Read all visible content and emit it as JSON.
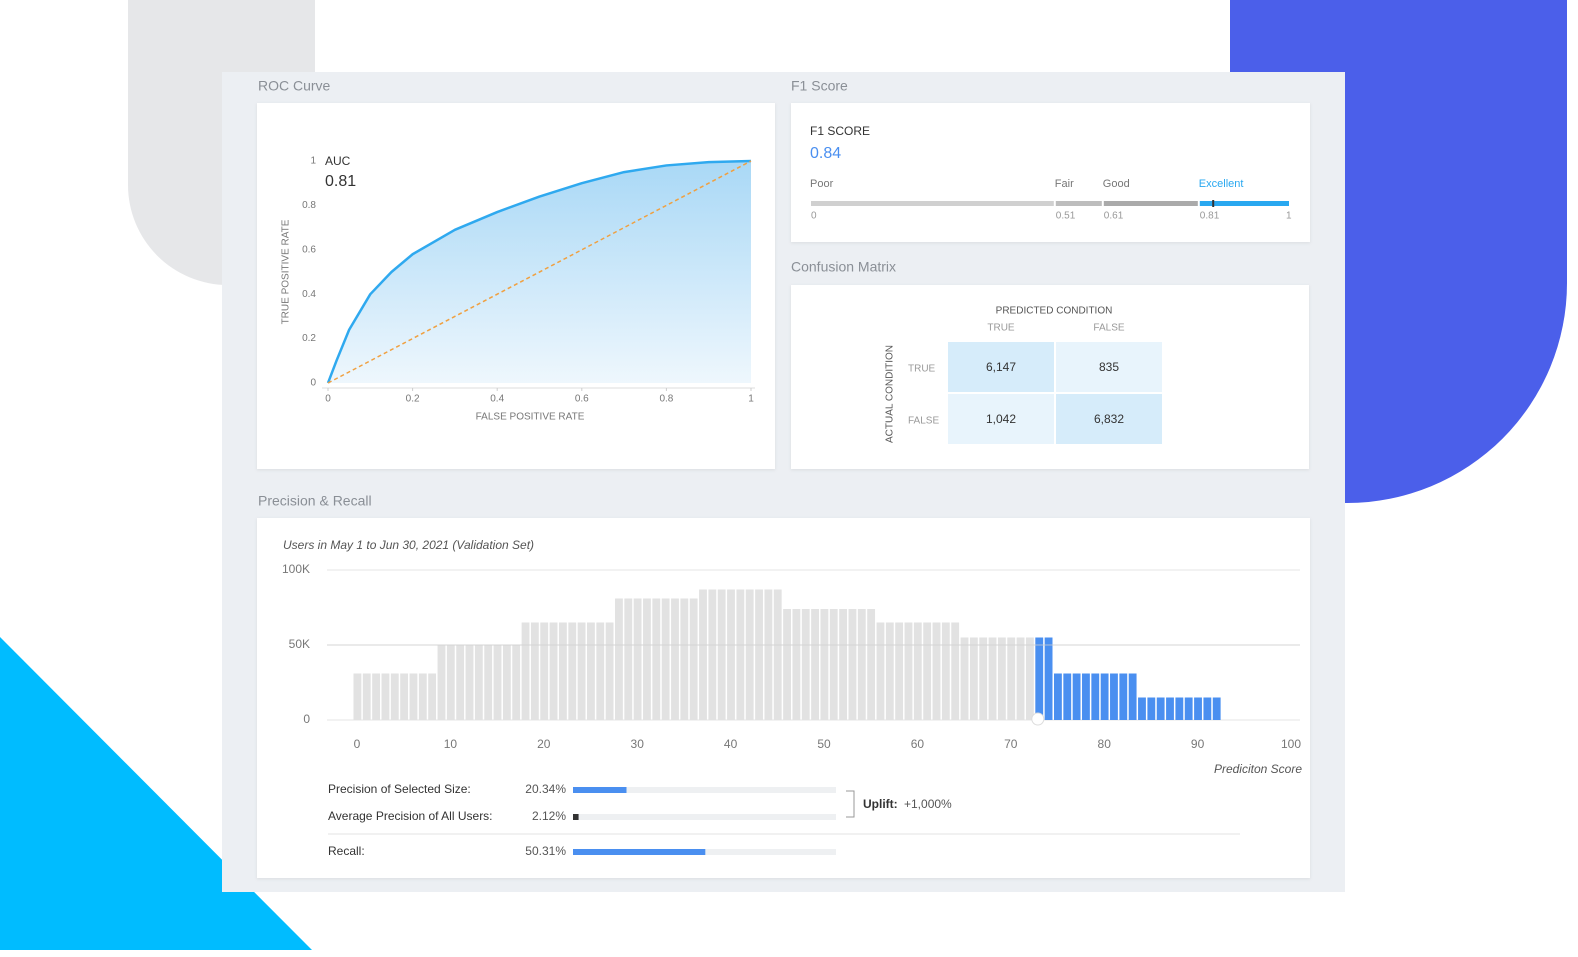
{
  "sections": {
    "roc": "ROC Curve",
    "f1": "F1 Score",
    "confusion": "Confusion Matrix",
    "precision_recall": "Precision & Recall"
  },
  "chart_data": [
    {
      "type": "line",
      "xlabel": "FALSE POSITIVE RATE",
      "ylabel": "TRUE POSITIVE RATE",
      "auc_label": "AUC",
      "auc": 0.81,
      "xlim": [
        0,
        1
      ],
      "ylim": [
        0,
        1
      ],
      "xticks": [
        0,
        0.2,
        0.4,
        0.6,
        0.8,
        1
      ],
      "yticks": [
        0,
        0.2,
        0.4,
        0.6,
        0.8,
        1
      ],
      "series": [
        {
          "color": "#2fa9ef",
          "fill": true,
          "x": [
            0,
            0.02,
            0.05,
            0.1,
            0.15,
            0.2,
            0.3,
            0.4,
            0.5,
            0.6,
            0.7,
            0.8,
            0.9,
            1
          ],
          "values": [
            0,
            0.1,
            0.24,
            0.4,
            0.5,
            0.58,
            0.69,
            0.77,
            0.84,
            0.9,
            0.95,
            0.98,
            0.995,
            1
          ]
        },
        {
          "color": "#f0a040",
          "dashed": true,
          "x": [
            0,
            1
          ],
          "values": [
            0,
            1
          ]
        }
      ]
    },
    {
      "type": "histogram",
      "title": "Users in May 1 to Jun 30, 2021 (Validation Set)",
      "xlabel": "Prediciton Score",
      "xlim": [
        0,
        100
      ],
      "xticks": [
        0,
        10,
        20,
        30,
        40,
        50,
        60,
        70,
        80,
        90,
        100
      ],
      "ylim": [
        0,
        100000
      ],
      "yticks": [
        0,
        {
          "value": 50000,
          "label": "50K"
        },
        {
          "value": 100000,
          "label": "100K"
        }
      ],
      "grid": true,
      "color": "#e2e2e2",
      "highlight_color": "#4a8ff0",
      "threshold": 73,
      "bins": [
        0,
        1,
        2,
        3,
        4,
        5,
        6,
        7,
        8,
        9,
        10,
        11,
        12,
        13,
        14,
        15,
        16,
        17,
        18,
        19,
        20,
        21,
        22,
        23,
        24,
        25,
        26,
        27,
        28,
        29,
        30,
        31,
        32,
        33,
        34,
        35,
        36,
        37,
        38,
        39,
        40,
        41,
        42,
        43,
        44,
        45,
        46,
        47,
        48,
        49,
        50,
        51,
        52,
        53,
        54,
        55,
        56,
        57,
        58,
        59,
        60,
        61,
        62,
        63,
        64,
        65,
        66,
        67,
        68,
        69,
        70,
        71,
        72,
        73,
        74,
        75,
        76,
        77,
        78,
        79,
        80,
        81,
        82,
        83,
        84,
        85,
        86,
        87,
        88,
        89,
        90,
        91,
        92,
        93
      ],
      "values": [
        31000,
        31000,
        31000,
        31000,
        31000,
        31000,
        31000,
        31000,
        31000,
        50000,
        50000,
        50000,
        50000,
        50000,
        50000,
        50000,
        50000,
        50000,
        65000,
        65000,
        65000,
        65000,
        65000,
        65000,
        65000,
        65000,
        65000,
        65000,
        81000,
        81000,
        81000,
        81000,
        81000,
        81000,
        81000,
        81000,
        81000,
        87000,
        87000,
        87000,
        87000,
        87000,
        87000,
        87000,
        87000,
        87000,
        74000,
        74000,
        74000,
        74000,
        74000,
        74000,
        74000,
        74000,
        74000,
        74000,
        65000,
        65000,
        65000,
        65000,
        65000,
        65000,
        65000,
        65000,
        65000,
        55000,
        55000,
        55000,
        55000,
        55000,
        55000,
        55000,
        55000,
        55000,
        55000,
        31000,
        31000,
        31000,
        31000,
        31000,
        31000,
        31000,
        31000,
        31000,
        15000,
        15000,
        15000,
        15000,
        15000,
        15000,
        15000,
        15000,
        15000
      ]
    }
  ],
  "f1": {
    "label": "F1 SCORE",
    "score": 0.84,
    "ticks": [
      0,
      0.51,
      0.61,
      0.81,
      1
    ],
    "levels": [
      {
        "name": "Poor",
        "color": "#d0d0d0"
      },
      {
        "name": "Fair",
        "color": "#bdbdbd"
      },
      {
        "name": "Good",
        "color": "#aaaaaa"
      },
      {
        "name": "Excellent",
        "color": "#29a8f0"
      }
    ]
  },
  "confusion_matrix": {
    "title": "PREDICTED CONDITION",
    "columns": [
      "TRUE",
      "FALSE"
    ],
    "row_title": "ACTUAL CONDITION",
    "rows": [
      {
        "label": "TRUE",
        "cells": [
          "6,147",
          "835"
        ]
      },
      {
        "label": "FALSE",
        "cells": [
          "1,042",
          "6,832"
        ]
      }
    ]
  },
  "precision_recall": {
    "scale": [
      0,
      100
    ],
    "metrics": [
      {
        "label": "Precision of Selected Size:",
        "value": 20.34,
        "value_label": "20.34%"
      },
      {
        "label": "Average Precision of All Users:",
        "value": 2.12,
        "value_label": "2.12%"
      },
      {
        "label": "Recall:",
        "value": 50.31,
        "value_label": "50.31%"
      }
    ],
    "uplift_label": "Uplift:",
    "uplift": "+1,000%"
  }
}
